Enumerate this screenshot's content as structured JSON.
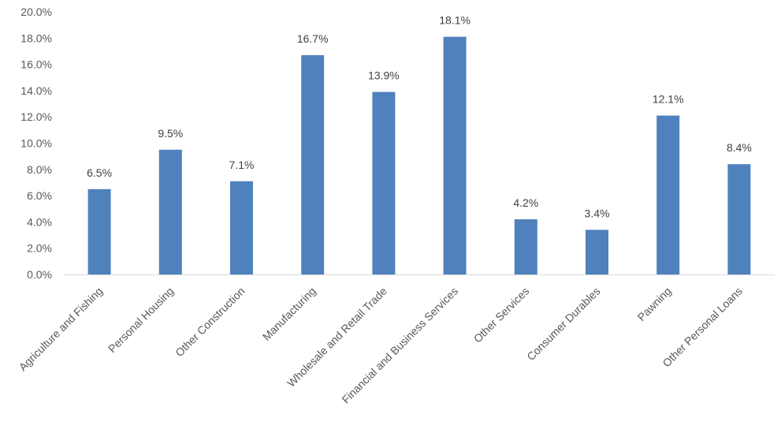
{
  "chart_data": {
    "type": "bar",
    "categories": [
      "Agriculture and Fishing",
      "Personal Housing",
      "Other Construction",
      "Manufacturing",
      "Wholesale and Retail Trade",
      "Financial and Business Services",
      "Other Services",
      "Consumer Durables",
      "Pawning",
      "Other Personal Loans"
    ],
    "values": [
      6.5,
      9.5,
      7.1,
      16.7,
      13.9,
      18.1,
      4.2,
      3.4,
      12.1,
      8.4
    ],
    "data_labels": [
      "6.5%",
      "9.5%",
      "7.1%",
      "16.7%",
      "13.9%",
      "18.1%",
      "4.2%",
      "3.4%",
      "12.1%",
      "8.4%"
    ],
    "y_ticks": [
      0,
      2,
      4,
      6,
      8,
      10,
      12,
      14,
      16,
      18,
      20
    ],
    "y_tick_labels": [
      "0.0%",
      "2.0%",
      "4.0%",
      "6.0%",
      "8.0%",
      "10.0%",
      "12.0%",
      "14.0%",
      "16.0%",
      "18.0%",
      "20.0%"
    ],
    "ylim": [
      0,
      20
    ],
    "title": "",
    "xlabel": "",
    "ylabel": "",
    "grid": false,
    "legend": "none",
    "bar_color": "#4F81BD",
    "axis_color": "#D9D9D9"
  }
}
